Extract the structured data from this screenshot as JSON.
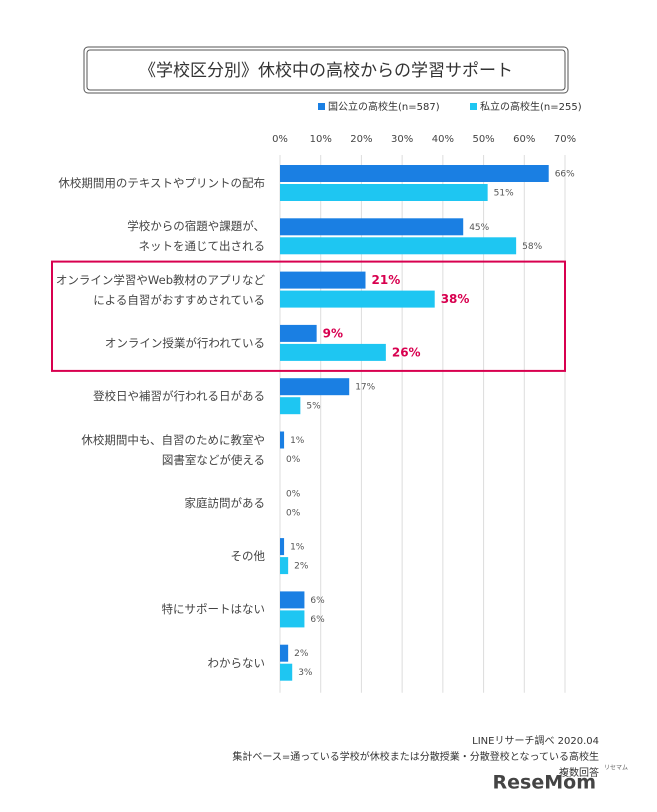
{
  "chart_data": {
    "type": "hbar",
    "title": "《学校区分別》休校中の高校からの学習サポート",
    "categories": [
      "休校期間用のテキストやプリントの配布",
      "学校からの宿題や課題が、\nネットを通じて出される",
      "オンライン学習やWeb教材のアプリなど\nによる自習がおすすめされている",
      "オンライン授業が行われている",
      "登校日や補習が行われる日がある",
      "休校期間中も、自習のために教室や\n図書室などが使える",
      "家庭訪問がある",
      "その他",
      "特にサポートはない",
      "わからない"
    ],
    "series": [
      {
        "name": "国公立の高校生(n=587)",
        "color": "#1a7fe3",
        "values": [
          66,
          45,
          21,
          9,
          17,
          1,
          0,
          1,
          6,
          2
        ],
        "value_labels": [
          "66%",
          "45%",
          "21%",
          "9%",
          "17%",
          "1%",
          "0%",
          "1%",
          "6%",
          "2%"
        ]
      },
      {
        "name": "私立の高校生(n=255)",
        "color": "#1ec6f2",
        "values": [
          51,
          58,
          38,
          26,
          5,
          0,
          0,
          2,
          6,
          3
        ],
        "value_labels": [
          "51%",
          "58%",
          "38%",
          "26%",
          "5%",
          "0%",
          "0%",
          "2%",
          "6%",
          "3%"
        ]
      }
    ],
    "xlim": [
      0,
      70
    ],
    "xticks": [
      {
        "value": 0,
        "label": "0%"
      },
      {
        "value": 10,
        "label": "10%"
      },
      {
        "value": 20,
        "label": "20%"
      },
      {
        "value": 30,
        "label": "30%"
      },
      {
        "value": 40,
        "label": "40%"
      },
      {
        "value": 50,
        "label": "50%"
      },
      {
        "value": 60,
        "label": "60%"
      },
      {
        "value": 70,
        "label": "70%"
      }
    ],
    "grid": true,
    "highlight_categories": [
      2,
      3
    ],
    "highlight_color": "#d8004f",
    "source": "LINEリサーチ調べ 2020.04",
    "base_note": "集計ベース=通っている学校が休校または分散授業・分散登校となっている高校生",
    "answer_note": "複数回答",
    "watermark": "ReseMom",
    "watermark_sub": "リセマム"
  }
}
